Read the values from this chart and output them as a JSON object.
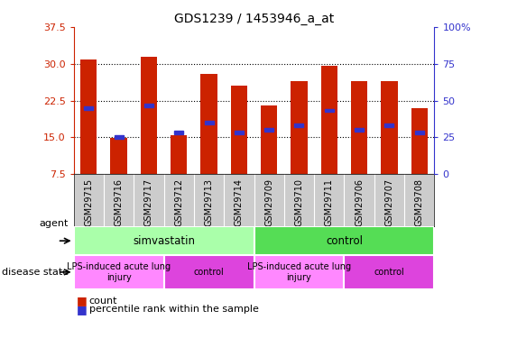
{
  "title": "GDS1239 / 1453946_a_at",
  "samples": [
    "GSM29715",
    "GSM29716",
    "GSM29717",
    "GSM29712",
    "GSM29713",
    "GSM29714",
    "GSM29709",
    "GSM29710",
    "GSM29711",
    "GSM29706",
    "GSM29707",
    "GSM29708"
  ],
  "bar_tops": [
    30.8,
    14.8,
    31.5,
    15.5,
    28.0,
    25.5,
    21.5,
    26.5,
    29.5,
    26.5,
    26.5,
    21.0
  ],
  "bar_bottom": 7.5,
  "percentile_vals": [
    21.0,
    15.0,
    21.5,
    16.0,
    18.0,
    16.0,
    16.5,
    17.5,
    20.5,
    16.5,
    17.5,
    16.0
  ],
  "ylim": [
    7.5,
    37.5
  ],
  "yticks_left": [
    7.5,
    15.0,
    22.5,
    30.0,
    37.5
  ],
  "right_tick_labels": [
    "0",
    "25",
    "50",
    "75",
    "100%"
  ],
  "bar_color": "#cc2200",
  "percentile_color": "#3333cc",
  "plot_bg": "#ffffff",
  "fig_bg": "#ffffff",
  "agent_groups": [
    {
      "label": "simvastatin",
      "start": 0,
      "end": 6,
      "color": "#aaffaa"
    },
    {
      "label": "control",
      "start": 6,
      "end": 12,
      "color": "#55dd55"
    }
  ],
  "disease_groups": [
    {
      "label": "LPS-induced acute lung\ninjury",
      "start": 0,
      "end": 3,
      "color": "#ff88ff"
    },
    {
      "label": "control",
      "start": 3,
      "end": 6,
      "color": "#dd44dd"
    },
    {
      "label": "LPS-induced acute lung\ninjury",
      "start": 6,
      "end": 9,
      "color": "#ff88ff"
    },
    {
      "label": "control",
      "start": 9,
      "end": 12,
      "color": "#dd44dd"
    }
  ],
  "sample_bg": "#cccccc",
  "legend_count_color": "#cc2200",
  "legend_pct_color": "#3333cc",
  "dotted_lines": [
    15.0,
    22.5,
    30.0
  ],
  "left_label_color": "#cc2200",
  "right_label_color": "#3333cc"
}
